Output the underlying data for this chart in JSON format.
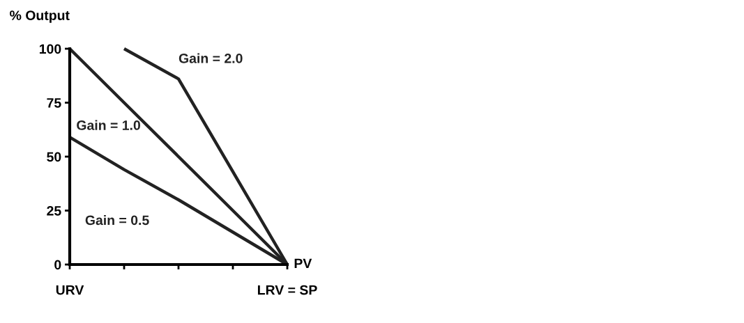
{
  "chart_data": {
    "type": "line",
    "ylabel": "% Output",
    "xlabel": "PV",
    "series": [
      {
        "name": "Gain = 2.0",
        "color": "#222222",
        "values": [
          null,
          100,
          86,
          43,
          0
        ]
      },
      {
        "name": "Gain = 1.0",
        "color": "#222222",
        "values": [
          100,
          75,
          50,
          25,
          0
        ]
      },
      {
        "name": "Gain = 0.5",
        "color": "#222222",
        "values": [
          59,
          44,
          30,
          15,
          0
        ]
      }
    ],
    "categories": [
      "URV",
      null,
      null,
      null,
      "LRV = SP"
    ],
    "ylim": [
      0,
      100
    ],
    "yticks": [
      0,
      25,
      50,
      75,
      100
    ],
    "grid": false,
    "legend": false,
    "marker": "none",
    "line_style": "solid"
  }
}
